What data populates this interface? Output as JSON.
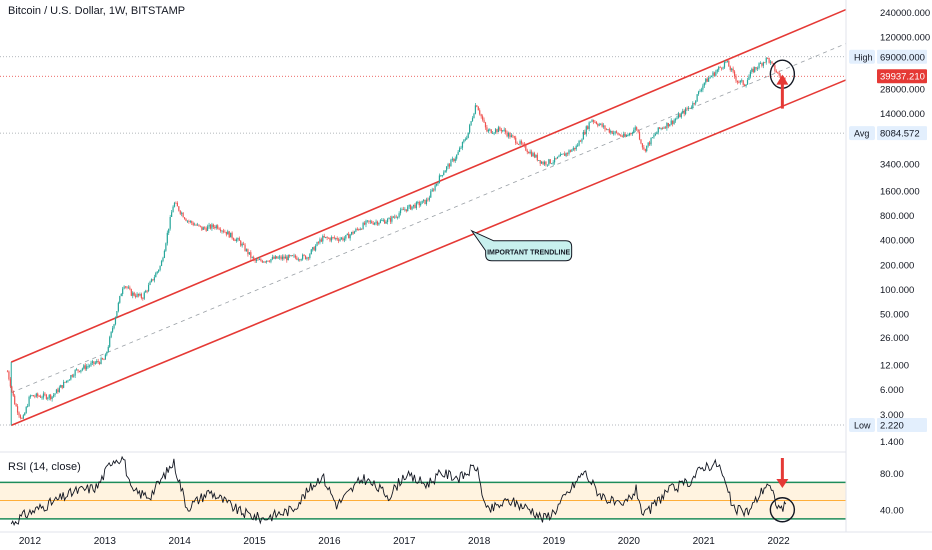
{
  "header": {
    "symbol_title": "Bitcoin / U.S. Dollar, 1W, BITSTAMP"
  },
  "rsi": {
    "title": "RSI (14, close)"
  },
  "colors": {
    "up_candle": "#26a69a",
    "down_candle": "#ef5350",
    "channel": "#e53935",
    "rsi_band_line": "#1e8c5a",
    "rsi_mid": "#ff9800",
    "rsi_band_fill": "#fff3e0",
    "price_line": "#e53935",
    "dotted": "#9aa0a6",
    "label_bg": "#e3effd",
    "callout_bg": "#c8f0ee"
  },
  "annotations": {
    "trendline_callout": "IMPORTANT TRENDLINE"
  },
  "price_markers": {
    "high": {
      "label": "High",
      "value": "69000.000"
    },
    "current": {
      "value": "39937.210"
    },
    "avg": {
      "label": "Avg",
      "value": "8084.572"
    },
    "low": {
      "label": "Low",
      "value": "2.220"
    }
  },
  "chart_data": [
    {
      "type": "candlestick",
      "title": "Bitcoin / U.S. Dollar, 1W, BITSTAMP",
      "scale": "log",
      "ylim": [
        1.1,
        340000
      ],
      "xlim": [
        2011.6,
        2022.9
      ],
      "y_ticks": [
        "240000.000",
        "120000.000",
        "69000.000",
        "39937.210",
        "28000.000",
        "14000.000",
        "8084.572",
        "3400.000",
        "1600.000",
        "800.000",
        "400.000",
        "200.000",
        "100.000",
        "50.000",
        "26.000",
        "12.000",
        "6.000",
        "3.000",
        "2.220",
        "1.400"
      ],
      "y_tick_values": [
        240000,
        120000,
        69000,
        39937.21,
        28000,
        14000,
        8084.572,
        3400,
        1600,
        800,
        400,
        200,
        100,
        50,
        26,
        12,
        6,
        3,
        2.22,
        1.4
      ],
      "x_ticks": [
        "2012",
        "2013",
        "2014",
        "2015",
        "2016",
        "2017",
        "2018",
        "2019",
        "2020",
        "2021",
        "2022"
      ],
      "x_tick_values": [
        2012,
        2013,
        2014,
        2015,
        2016,
        2017,
        2018,
        2019,
        2020,
        2021,
        2022
      ],
      "price_path": [
        [
          2011.7,
          10
        ],
        [
          2011.8,
          4
        ],
        [
          2011.9,
          2.5
        ],
        [
          2012.0,
          5
        ],
        [
          2012.3,
          5
        ],
        [
          2012.6,
          10
        ],
        [
          2012.8,
          12
        ],
        [
          2013.0,
          14
        ],
        [
          2013.25,
          120
        ],
        [
          2013.35,
          90
        ],
        [
          2013.5,
          80
        ],
        [
          2013.75,
          200
        ],
        [
          2013.92,
          1150
        ],
        [
          2014.1,
          700
        ],
        [
          2014.3,
          550
        ],
        [
          2014.5,
          600
        ],
        [
          2014.8,
          380
        ],
        [
          2015.0,
          220
        ],
        [
          2015.3,
          240
        ],
        [
          2015.7,
          250
        ],
        [
          2015.9,
          420
        ],
        [
          2016.2,
          420
        ],
        [
          2016.5,
          650
        ],
        [
          2016.8,
          700
        ],
        [
          2017.0,
          950
        ],
        [
          2017.3,
          1200
        ],
        [
          2017.5,
          2600
        ],
        [
          2017.7,
          4300
        ],
        [
          2017.85,
          8000
        ],
        [
          2017.96,
          19000
        ],
        [
          2018.1,
          8500
        ],
        [
          2018.3,
          9000
        ],
        [
          2018.5,
          6500
        ],
        [
          2018.85,
          3500
        ],
        [
          2019.0,
          3700
        ],
        [
          2019.3,
          5500
        ],
        [
          2019.5,
          12000
        ],
        [
          2019.7,
          9000
        ],
        [
          2019.95,
          7200
        ],
        [
          2020.1,
          9500
        ],
        [
          2020.2,
          5000
        ],
        [
          2020.4,
          9000
        ],
        [
          2020.6,
          11500
        ],
        [
          2020.85,
          18000
        ],
        [
          2021.0,
          33000
        ],
        [
          2021.3,
          60000
        ],
        [
          2021.45,
          35000
        ],
        [
          2021.55,
          32000
        ],
        [
          2021.65,
          47000
        ],
        [
          2021.85,
          66000
        ],
        [
          2021.95,
          48000
        ],
        [
          2022.05,
          36000
        ],
        [
          2022.1,
          40000
        ]
      ],
      "channel_lines": [
        {
          "name": "upper",
          "from": [
            2011.75,
            13
          ],
          "to": [
            2022.9,
            260000
          ]
        },
        {
          "name": "lower",
          "from": [
            2011.75,
            2.2
          ],
          "to": [
            2022.9,
            36000
          ]
        }
      ],
      "mid_dashed_line": {
        "from": [
          2011.75,
          5.5
        ],
        "to": [
          2022.9,
          100000
        ]
      },
      "horizontal_lines": [
        {
          "label": "High",
          "value": 69000,
          "style": "dotted"
        },
        {
          "label": "Current",
          "value": 39937.21,
          "style": "dotted-red"
        },
        {
          "label": "Avg",
          "value": 8084.572,
          "style": "dotted"
        },
        {
          "label": "Low",
          "value": 2.22,
          "style": "dotted"
        }
      ],
      "annotations": [
        {
          "type": "callout",
          "text": "IMPORTANT TRENDLINE",
          "points_to": [
            2017.9,
            520
          ]
        },
        {
          "type": "circle",
          "at": [
            2022.05,
            40000
          ]
        },
        {
          "type": "arrow-up",
          "at": [
            2022.05,
            18000
          ]
        }
      ]
    },
    {
      "type": "line",
      "title": "RSI (14, close)",
      "ylim": [
        20,
        100
      ],
      "y_ticks": [
        "80.00",
        "40.00"
      ],
      "y_tick_values": [
        80,
        40
      ],
      "bands": {
        "upper": 70,
        "mid": 50,
        "lower": 30
      },
      "rsi_path": [
        [
          2011.75,
          25
        ],
        [
          2011.9,
          33
        ],
        [
          2012.0,
          37
        ],
        [
          2012.3,
          48
        ],
        [
          2012.6,
          60
        ],
        [
          2012.9,
          65
        ],
        [
          2013.1,
          95
        ],
        [
          2013.25,
          97
        ],
        [
          2013.35,
          60
        ],
        [
          2013.6,
          55
        ],
        [
          2013.92,
          92
        ],
        [
          2014.1,
          42
        ],
        [
          2014.4,
          60
        ],
        [
          2014.8,
          38
        ],
        [
          2015.1,
          30
        ],
        [
          2015.5,
          40
        ],
        [
          2015.9,
          78
        ],
        [
          2016.1,
          45
        ],
        [
          2016.45,
          75
        ],
        [
          2016.8,
          55
        ],
        [
          2017.0,
          78
        ],
        [
          2017.3,
          68
        ],
        [
          2017.5,
          80
        ],
        [
          2017.75,
          75
        ],
        [
          2017.96,
          88
        ],
        [
          2018.1,
          38
        ],
        [
          2018.4,
          50
        ],
        [
          2018.7,
          40
        ],
        [
          2018.85,
          30
        ],
        [
          2019.0,
          38
        ],
        [
          2019.4,
          82
        ],
        [
          2019.6,
          58
        ],
        [
          2019.9,
          42
        ],
        [
          2020.1,
          62
        ],
        [
          2020.2,
          32
        ],
        [
          2020.5,
          60
        ],
        [
          2020.8,
          70
        ],
        [
          2021.0,
          88
        ],
        [
          2021.2,
          90
        ],
        [
          2021.4,
          40
        ],
        [
          2021.6,
          38
        ],
        [
          2021.85,
          70
        ],
        [
          2022.0,
          42
        ],
        [
          2022.1,
          44
        ]
      ],
      "annotations": [
        {
          "type": "circle",
          "at": [
            2022.05,
            40
          ]
        },
        {
          "type": "arrow-down",
          "at": [
            2022.05,
            75
          ]
        }
      ]
    }
  ]
}
